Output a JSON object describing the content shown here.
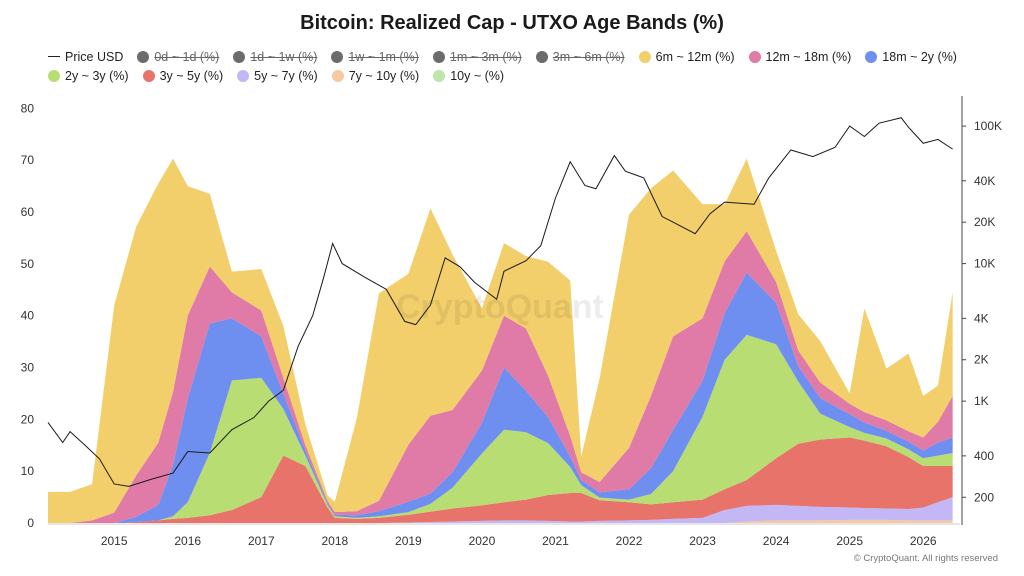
{
  "header": {
    "title": "Bitcoin: Realized Cap - UTXO Age Bands (%)"
  },
  "legend": [
    {
      "label": "Price USD",
      "color": "#222222",
      "kind": "line",
      "hidden": false
    },
    {
      "label": "0d ~ 1d (%)",
      "color": "#6b6b6b",
      "kind": "dot",
      "hidden": true
    },
    {
      "label": "1d ~ 1w (%)",
      "color": "#6b6b6b",
      "kind": "dot",
      "hidden": true
    },
    {
      "label": "1w ~ 1m (%)",
      "color": "#6b6b6b",
      "kind": "dot",
      "hidden": true
    },
    {
      "label": "1m ~ 3m (%)",
      "color": "#6b6b6b",
      "kind": "dot",
      "hidden": true
    },
    {
      "label": "3m ~ 6m (%)",
      "color": "#6b6b6b",
      "kind": "dot",
      "hidden": true
    },
    {
      "label": "6m ~ 12m (%)",
      "color": "#f2cf6b",
      "kind": "dot",
      "hidden": false
    },
    {
      "label": "12m ~ 18m (%)",
      "color": "#e07aa6",
      "kind": "dot",
      "hidden": false
    },
    {
      "label": "18m ~ 2y (%)",
      "color": "#6f8ff0",
      "kind": "dot",
      "hidden": false
    },
    {
      "label": "2y ~ 3y (%)",
      "color": "#b8dd73",
      "kind": "dot",
      "hidden": false
    },
    {
      "label": "3y ~ 5y (%)",
      "color": "#e8736a",
      "kind": "dot",
      "hidden": false
    },
    {
      "label": "5y ~ 7y (%)",
      "color": "#c3b8f5",
      "kind": "dot",
      "hidden": false
    },
    {
      "label": "7y ~ 10y (%)",
      "color": "#f6c9a0",
      "kind": "dot",
      "hidden": false
    },
    {
      "label": "10y ~ (%)",
      "color": "#bde6a8",
      "kind": "dot",
      "hidden": false
    }
  ],
  "watermark": "CryptoQuant",
  "credit": "© CryptoQuant. All rights reserved",
  "chart_data": {
    "type": "area",
    "stacked": true,
    "x_ticks": [
      "2015",
      "2016",
      "2017",
      "2018",
      "2019",
      "2020",
      "2021",
      "2022",
      "2023",
      "2024",
      "2025",
      "2026"
    ],
    "x_range": [
      2014.1,
      2026.5
    ],
    "y_left_range": [
      0,
      82
    ],
    "y_left_ticks": [
      "0",
      "10",
      "20",
      "30",
      "40",
      "50",
      "60",
      "70",
      "80"
    ],
    "y_right_ticks": [
      {
        "label": "200",
        "value": 200
      },
      {
        "label": "400",
        "value": 400
      },
      {
        "label": "1K",
        "value": 1000
      },
      {
        "label": "2K",
        "value": 2000
      },
      {
        "label": "4K",
        "value": 4000
      },
      {
        "label": "10K",
        "value": 10000
      },
      {
        "label": "20K",
        "value": 20000
      },
      {
        "label": "40K",
        "value": 40000
      },
      {
        "label": "100K",
        "value": 100000
      }
    ],
    "y_right_scale": "log",
    "y_right_range": [
      130,
      160000
    ],
    "grid": false,
    "legend_position": "top",
    "x": [
      2014.1,
      2014.4,
      2014.7,
      2015.0,
      2015.3,
      2015.6,
      2015.8,
      2016.0,
      2016.3,
      2016.6,
      2017.0,
      2017.3,
      2017.6,
      2017.9,
      2018.0,
      2018.3,
      2018.6,
      2019.0,
      2019.3,
      2019.6,
      2020.0,
      2020.3,
      2020.6,
      2020.9,
      2021.2,
      2021.35,
      2021.6,
      2022.0,
      2022.3,
      2022.6,
      2023.0,
      2023.3,
      2023.6,
      2024.0,
      2024.3,
      2024.6,
      2025.0,
      2025.2,
      2025.5,
      2025.8,
      2026.0,
      2026.2,
      2026.4
    ],
    "series": [
      {
        "name": "10y ~ (%)",
        "color": "#bde6a8",
        "values": [
          0,
          0,
          0,
          0,
          0,
          0,
          0,
          0,
          0,
          0,
          0,
          0,
          0,
          0,
          0,
          0,
          0,
          0,
          0,
          0,
          0,
          0,
          0,
          0,
          0,
          0,
          0,
          0,
          0,
          0,
          0,
          0,
          0,
          0,
          0,
          0,
          0,
          0,
          0,
          0,
          0,
          0,
          0
        ]
      },
      {
        "name": "7y ~ 10y (%)",
        "color": "#f6c9a0",
        "values": [
          0,
          0,
          0,
          0,
          0,
          0,
          0,
          0,
          0,
          0,
          0,
          0,
          0,
          0,
          0,
          0,
          0,
          0,
          0,
          0,
          0,
          0,
          0,
          0,
          0,
          0,
          0,
          0,
          0,
          0,
          0,
          0,
          0.3,
          0.5,
          0.5,
          0.5,
          0.6,
          0.6,
          0.6,
          0.5,
          0.5,
          0.5,
          0.5
        ]
      },
      {
        "name": "5y ~ 7y (%)",
        "color": "#c3b8f5",
        "values": [
          0,
          0,
          0,
          0,
          0,
          0,
          0,
          0,
          0,
          0,
          0,
          0,
          0,
          0,
          0,
          0,
          0,
          0.1,
          0.2,
          0.3,
          0.4,
          0.5,
          0.5,
          0.4,
          0.3,
          0.3,
          0.4,
          0.5,
          0.6,
          0.8,
          1.0,
          2.5,
          3.0,
          3.0,
          2.8,
          2.6,
          2.4,
          2.3,
          2.2,
          2.2,
          2.5,
          3.5,
          4.5
        ]
      },
      {
        "name": "3y ~ 5y (%)",
        "color": "#e8736a",
        "values": [
          0,
          0,
          0,
          0,
          0.2,
          0.5,
          0.8,
          1,
          1.5,
          2.5,
          5,
          13,
          11,
          3,
          1,
          0.8,
          1,
          1.5,
          2,
          2.5,
          3,
          3.5,
          4,
          5,
          5.5,
          5.5,
          4,
          3.5,
          3,
          3.2,
          3.5,
          4,
          5,
          9,
          12,
          13,
          13.5,
          13,
          12,
          10,
          8,
          7,
          6
        ]
      },
      {
        "name": "2y ~ 3y (%)",
        "color": "#b8dd73",
        "values": [
          0,
          0,
          0,
          0,
          0,
          0,
          0.5,
          3,
          12,
          25,
          23,
          9,
          2,
          0.5,
          0.3,
          0.2,
          0.3,
          0.5,
          1.5,
          4,
          10,
          14,
          13,
          10,
          5,
          1.5,
          0.5,
          0.5,
          2,
          6,
          16,
          25,
          28,
          22,
          12,
          5,
          2,
          1.5,
          1.5,
          1.5,
          1.5,
          2,
          2.5
        ]
      },
      {
        "name": "18m ~ 2y (%)",
        "color": "#6f8ff0",
        "values": [
          0,
          0,
          0,
          0,
          1,
          3,
          10,
          20,
          25,
          12,
          8,
          3,
          1,
          0.3,
          0.3,
          0.5,
          1,
          2,
          2,
          3,
          6,
          12,
          8,
          5,
          2,
          1,
          1,
          2,
          5,
          8,
          7,
          9,
          12,
          8,
          3,
          3,
          2.5,
          2,
          1.5,
          1.5,
          1.5,
          2.5,
          3
        ]
      },
      {
        "name": "12m ~ 18m (%)",
        "color": "#e07aa6",
        "values": [
          0,
          0,
          0.5,
          2,
          8,
          12,
          14,
          16,
          11,
          5,
          5,
          3,
          1,
          0.5,
          0.5,
          0.8,
          2,
          11,
          15,
          12,
          10,
          10,
          12,
          8,
          4,
          1.5,
          2,
          8,
          14,
          18,
          12,
          10,
          8,
          4,
          3,
          3,
          2,
          2,
          2,
          2,
          2.5,
          4,
          8
        ]
      },
      {
        "name": "6m ~ 12m (%)",
        "color": "#f2cf6b",
        "values": [
          6,
          6,
          7,
          40,
          48,
          50,
          45,
          25,
          14,
          4,
          8,
          10,
          4,
          1,
          2,
          18,
          40,
          33,
          40,
          30,
          12,
          14,
          14,
          22,
          30,
          3,
          20,
          45,
          40,
          32,
          22,
          11,
          14,
          6,
          7,
          8,
          2,
          20,
          10,
          15,
          8,
          7,
          20
        ]
      }
    ],
    "price_usd": {
      "x": [
        2014.1,
        2014.3,
        2014.4,
        2014.6,
        2014.8,
        2015.0,
        2015.2,
        2015.5,
        2015.8,
        2016.0,
        2016.3,
        2016.6,
        2016.9,
        2017.1,
        2017.3,
        2017.5,
        2017.7,
        2017.85,
        2017.97,
        2018.1,
        2018.4,
        2018.7,
        2018.95,
        2019.1,
        2019.3,
        2019.5,
        2019.7,
        2019.9,
        2020.2,
        2020.3,
        2020.6,
        2020.8,
        2021.0,
        2021.2,
        2021.4,
        2021.55,
        2021.8,
        2021.95,
        2022.2,
        2022.45,
        2022.6,
        2022.9,
        2023.1,
        2023.3,
        2023.7,
        2023.9,
        2024.2,
        2024.5,
        2024.8,
        2025.0,
        2025.2,
        2025.4,
        2025.7,
        2025.8,
        2026.0,
        2026.2,
        2026.4
      ],
      "values": [
        700,
        500,
        600,
        480,
        380,
        250,
        240,
        270,
        300,
        430,
        420,
        620,
        760,
        1000,
        1200,
        2500,
        4200,
        8000,
        14000,
        10000,
        8000,
        6500,
        3800,
        3600,
        5000,
        11000,
        9500,
        7300,
        5500,
        8800,
        10500,
        13500,
        30000,
        55000,
        37000,
        35000,
        61000,
        47000,
        42000,
        22000,
        20000,
        16500,
        23000,
        28000,
        27000,
        42000,
        67000,
        60000,
        70000,
        100000,
        84000,
        105000,
        115000,
        98000,
        75000,
        80000,
        68000
      ]
    }
  }
}
